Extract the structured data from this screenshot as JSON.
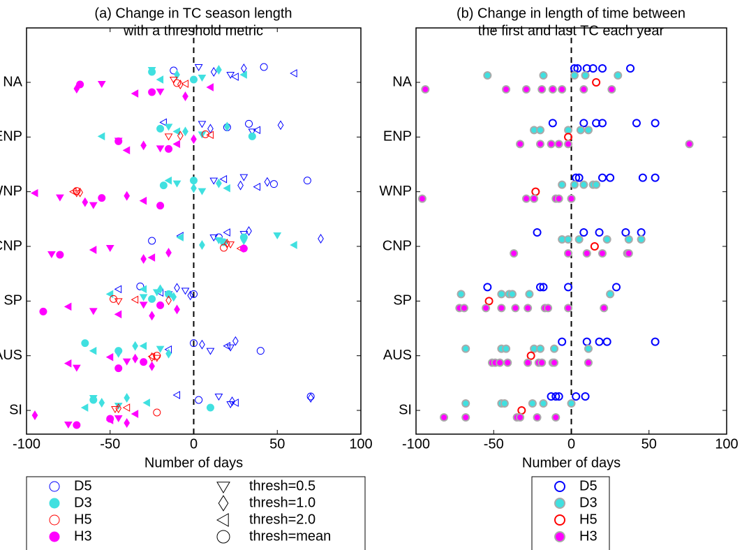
{
  "chart_data": [
    {
      "type": "scatter",
      "title": [
        "(a) Change in TC season length",
        "with a threshold metric"
      ],
      "x_label": "Number of days",
      "categories": [
        "NA",
        "ENP",
        "WNP",
        "CNP",
        "SP",
        "AUS",
        "SI"
      ],
      "xlim": [
        -100,
        100
      ],
      "xticks": [
        -100,
        -50,
        0,
        50,
        100
      ],
      "vline": 0,
      "legend": "below",
      "thresholds": [
        {
          "name": "thresh=0.5",
          "marker": "triangle-down"
        },
        {
          "name": "thresh=1.0",
          "marker": "diamond"
        },
        {
          "name": "thresh=2.0",
          "marker": "triangle-left"
        },
        {
          "name": "thresh=mean",
          "marker": "circle"
        }
      ],
      "series": [
        {
          "name": "D5",
          "color": "#0000ff",
          "filled": false,
          "values": [
            [
              [
                3,
                22
              ],
              [
                12,
                30
              ],
              [
                25,
                60
              ],
              [
                -12,
                42
              ]
            ],
            [
              [
                5,
                35
              ],
              [
                10,
                52
              ],
              [
                -18,
                38
              ],
              [
                20,
                33
              ]
            ],
            [
              [
                12,
                30
              ],
              [
                28,
                44
              ],
              [
                18,
                38
              ],
              [
                48,
                68
              ]
            ],
            [
              [
                12,
                30
              ],
              [
                33,
                76
              ],
              [
                -8,
                20
              ],
              [
                -25,
                15
              ]
            ],
            [
              [
                -15,
                -5
              ],
              [
                -10,
                -2
              ],
              [
                -20,
                -45
              ],
              [
                -32,
                0
              ]
            ],
            [
              [
                10,
                22
              ],
              [
                5,
                25
              ],
              [
                -15,
                20
              ],
              [
                0,
                40
              ]
            ],
            [
              [
                15,
                22
              ],
              [
                23,
                70
              ],
              [
                -10,
                25
              ],
              [
                3,
                70
              ]
            ]
          ]
        },
        {
          "name": "D3",
          "color": "#40e0e0",
          "filled": true,
          "values": [
            [
              [
                -25,
                5
              ],
              [
                -10,
                15
              ],
              [
                -20,
                30
              ],
              [
                -25,
                0
              ]
            ],
            [
              [
                -15,
                5
              ],
              [
                -5,
                20
              ],
              [
                -55,
                -10
              ],
              [
                -20,
                35
              ]
            ],
            [
              [
                -10,
                5
              ],
              [
                0,
                15
              ],
              [
                -15,
                20
              ],
              [
                -18,
                0
              ]
            ],
            [
              [
                15,
                50
              ],
              [
                5,
                30
              ],
              [
                -8,
                60
              ],
              [
                18,
                30
              ]
            ],
            [
              [
                -30,
                -22
              ],
              [
                -20,
                -12
              ],
              [
                -50,
                -30
              ],
              [
                -25,
                -15
              ]
            ],
            [
              [
                -45,
                -20
              ],
              [
                -35,
                -15
              ],
              [
                -60,
                -30
              ],
              [
                -65,
                -45
              ]
            ],
            [
              [
                -60,
                -45
              ],
              [
                -55,
                -40
              ],
              [
                -65,
                -28
              ],
              [
                -60,
                10
              ]
            ]
          ]
        },
        {
          "name": "H5",
          "color": "#ff0000",
          "filled": false,
          "values": [
            [
              [
                -12
              ],
              [
                -8
              ],
              [
                -5
              ],
              [
                -10
              ]
            ],
            [
              [
                -15
              ],
              [
                -8
              ],
              [
                10
              ],
              [
                7
              ]
            ],
            [
              [
                -70
              ],
              [
                -68
              ],
              [
                -72
              ],
              [
                -70
              ]
            ],
            [
              [
                22
              ],
              [
                20
              ],
              [
                28
              ],
              [
                18
              ]
            ],
            [
              [
                -45
              ],
              [
                -15
              ],
              [
                -35
              ],
              [
                -48
              ]
            ],
            [
              [
                -22
              ],
              [
                -25
              ],
              [
                -25
              ],
              [
                -22
              ]
            ],
            [
              [
                -47
              ],
              [
                -45
              ],
              [
                -40
              ],
              [
                -22
              ]
            ]
          ]
        },
        {
          "name": "H3",
          "color": "#ff00ff",
          "filled": true,
          "values": [
            [
              [
                -55,
                -20
              ],
              [
                -70,
                -5
              ],
              [
                -35,
                10
              ],
              [
                -68,
                -25
              ]
            ],
            [
              [
                -45,
                -20
              ],
              [
                -30,
                0
              ],
              [
                -40,
                -10
              ],
              [
                -45,
                -15
              ]
            ],
            [
              [
                -80,
                -60
              ],
              [
                -65,
                -40
              ],
              [
                -95,
                -30
              ],
              [
                -55,
                -20
              ]
            ],
            [
              [
                -85,
                -50
              ],
              [
                -30,
                -15
              ],
              [
                -60,
                -25
              ],
              [
                -80,
                30
              ]
            ],
            [
              [
                -60,
                -30
              ],
              [
                -25,
                -10
              ],
              [
                -75,
                -45
              ],
              [
                -90,
                -20
              ]
            ],
            [
              [
                -70,
                -40
              ],
              [
                -35,
                -25
              ],
              [
                -75,
                -50
              ],
              [
                -45,
                -30
              ]
            ],
            [
              [
                -75,
                -45
              ],
              [
                -95,
                -40
              ],
              [
                -50,
                -35
              ],
              [
                -70,
                -50
              ]
            ]
          ]
        }
      ]
    },
    {
      "type": "scatter",
      "title": [
        "(b) Change in length of time between",
        "the first and last TC each year"
      ],
      "x_label": "Number of days",
      "categories": [
        "NA",
        "ENP",
        "WNP",
        "CNP",
        "SP",
        "AUS",
        "SI"
      ],
      "xlim": [
        -100,
        100
      ],
      "xticks": [
        -100,
        -50,
        0,
        50,
        100
      ],
      "vline": 0,
      "legend": "below",
      "series": [
        {
          "name": "D5",
          "color": "#0000ff",
          "filled": false,
          "values": [
            [
              2,
              4,
              10,
              14,
              20,
              38
            ],
            [
              -12,
              8,
              16,
              20,
              42,
              54
            ],
            [
              3,
              5,
              20,
              25,
              46,
              54
            ],
            [
              -22,
              8,
              18,
              35,
              45
            ],
            [
              -54,
              -20,
              -18,
              -2,
              29
            ],
            [
              -6,
              10,
              18,
              23,
              54
            ],
            [
              -13,
              -10,
              -8,
              3,
              9
            ]
          ]
        },
        {
          "name": "D3",
          "color": "#40e0e0",
          "filled": true,
          "values": [
            [
              -54,
              -18,
              2,
              9,
              30
            ],
            [
              -24,
              -20,
              -2,
              6,
              11
            ],
            [
              -6,
              2,
              8,
              14,
              16
            ],
            [
              -6,
              -2,
              5,
              23,
              37,
              45
            ],
            [
              -71,
              -45,
              -40,
              -38,
              -27,
              25
            ],
            [
              -68,
              -45,
              -42,
              -24,
              -20,
              -11,
              11
            ],
            [
              -68,
              -45,
              -43,
              -25,
              -18,
              0
            ]
          ]
        },
        {
          "name": "H5",
          "color": "#ff0000",
          "filled": false,
          "values": [
            [
              16
            ],
            [
              -2
            ],
            [
              -23
            ],
            [
              15
            ],
            [
              -53
            ],
            [
              -26
            ],
            [
              -32
            ]
          ]
        },
        {
          "name": "H3",
          "color": "#ff00ff",
          "filled": true,
          "values": [
            [
              -94,
              -42,
              -29,
              -19,
              -12,
              -6,
              8,
              26
            ],
            [
              -33,
              -20,
              -13,
              -8,
              -2,
              76
            ],
            [
              -96,
              -29,
              -24,
              -10,
              -8,
              0
            ],
            [
              -37,
              -2,
              10,
              20,
              36,
              37
            ],
            [
              -72,
              -69,
              -55,
              -45,
              -36,
              -28,
              -17,
              -15,
              -2,
              21
            ],
            [
              -51,
              -49,
              -46,
              -41,
              -28,
              -21,
              -19,
              -12,
              -11,
              11
            ],
            [
              -82,
              -68,
              -35,
              -33,
              -22,
              -10
            ]
          ]
        }
      ]
    }
  ]
}
